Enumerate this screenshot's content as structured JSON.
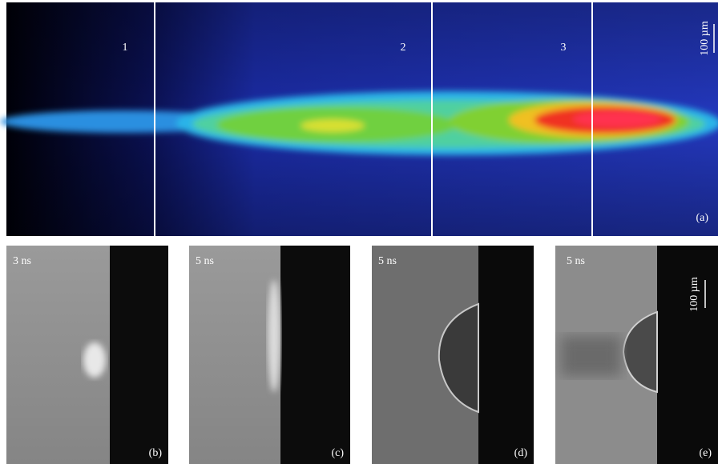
{
  "panel_a": {
    "region_labels": [
      "1",
      "2",
      "3"
    ],
    "scale_bar": "100 µm",
    "label": "(a)"
  },
  "panels": [
    {
      "time": "3 ns",
      "label": "(b)"
    },
    {
      "time": "5 ns",
      "label": "(c)"
    },
    {
      "time": "5 ns",
      "label": "(d)"
    },
    {
      "time": "5 ns",
      "label": "(e)"
    }
  ],
  "scale_bar": "100 µm"
}
